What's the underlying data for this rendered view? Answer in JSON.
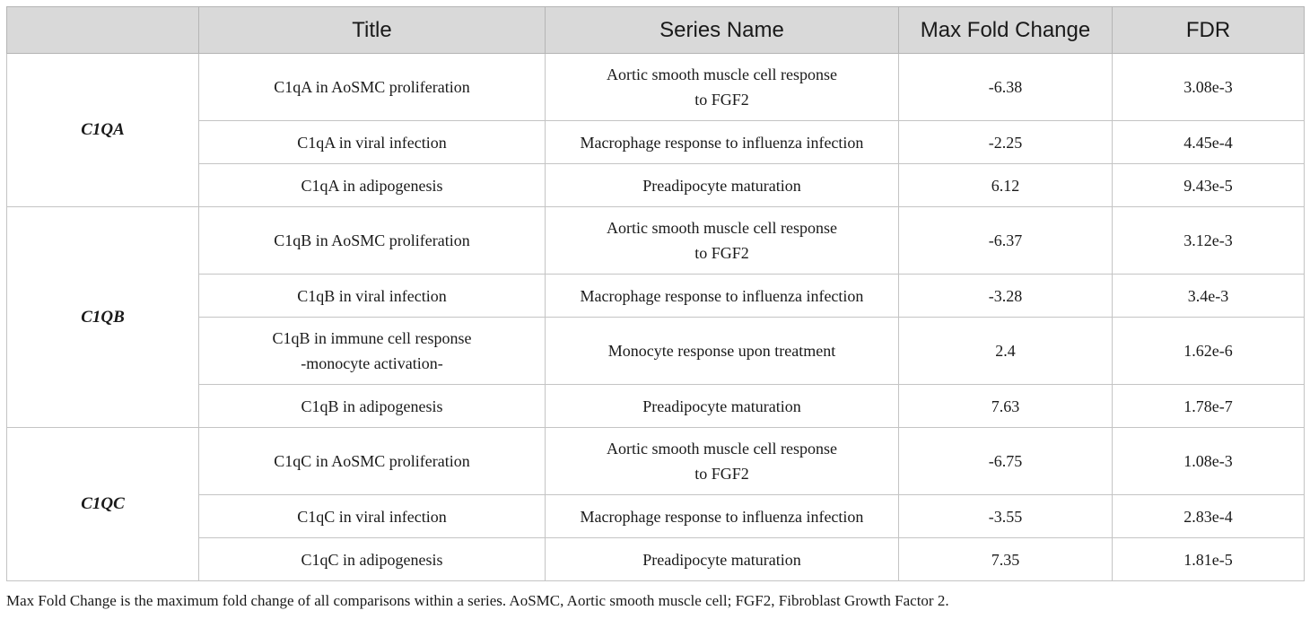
{
  "table": {
    "headers": [
      "",
      "Title",
      "Series Name",
      "Max Fold Change",
      "FDR"
    ],
    "groups": [
      {
        "gene": "C1QA",
        "rows": [
          {
            "title": [
              "C1qA in AoSMC proliferation"
            ],
            "series": [
              "Aortic smooth muscle cell response",
              "to FGF2"
            ],
            "max_fold_change": "-6.38",
            "fdr": "3.08e-3"
          },
          {
            "title": [
              "C1qA in viral infection"
            ],
            "series": [
              "Macrophage response to influenza infection"
            ],
            "max_fold_change": "-2.25",
            "fdr": "4.45e-4"
          },
          {
            "title": [
              "C1qA in adipogenesis"
            ],
            "series": [
              "Preadipocyte maturation"
            ],
            "max_fold_change": "6.12",
            "fdr": "9.43e-5"
          }
        ]
      },
      {
        "gene": "C1QB",
        "rows": [
          {
            "title": [
              "C1qB in AoSMC proliferation"
            ],
            "series": [
              "Aortic smooth muscle cell response",
              "to FGF2"
            ],
            "max_fold_change": "-6.37",
            "fdr": "3.12e-3"
          },
          {
            "title": [
              "C1qB in viral infection"
            ],
            "series": [
              "Macrophage response to influenza infection"
            ],
            "max_fold_change": "-3.28",
            "fdr": "3.4e-3"
          },
          {
            "title": [
              "C1qB in immune cell response",
              "-monocyte activation-"
            ],
            "series": [
              "Monocyte response upon treatment"
            ],
            "max_fold_change": "2.4",
            "fdr": "1.62e-6"
          },
          {
            "title": [
              "C1qB in adipogenesis"
            ],
            "series": [
              "Preadipocyte maturation"
            ],
            "max_fold_change": "7.63",
            "fdr": "1.78e-7"
          }
        ]
      },
      {
        "gene": "C1QC",
        "rows": [
          {
            "title": [
              "C1qC in AoSMC proliferation"
            ],
            "series": [
              "Aortic smooth muscle cell response",
              "to FGF2"
            ],
            "max_fold_change": "-6.75",
            "fdr": "1.08e-3"
          },
          {
            "title": [
              "C1qC in viral infection"
            ],
            "series": [
              "Macrophage response to influenza infection"
            ],
            "max_fold_change": "-3.55",
            "fdr": "2.83e-4"
          },
          {
            "title": [
              "C1qC in adipogenesis"
            ],
            "series": [
              "Preadipocyte maturation"
            ],
            "max_fold_change": "7.35",
            "fdr": "1.81e-5"
          }
        ]
      }
    ]
  },
  "caption": "Max Fold Change is the maximum fold change of all comparisons within a series. AoSMC, Aortic smooth muscle cell; FGF2, Fibroblast Growth Factor 2."
}
